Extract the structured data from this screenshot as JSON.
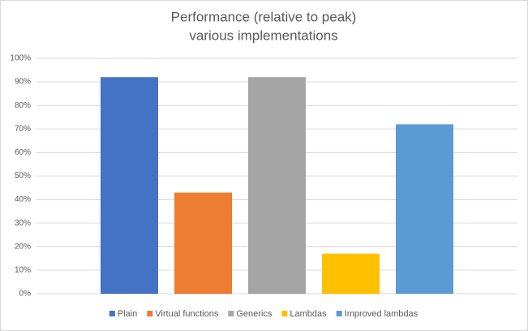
{
  "chart_data": {
    "type": "bar",
    "title": "Performance (relative to peak)",
    "subtitle": "various implementations",
    "categories": [
      null
    ],
    "series": [
      {
        "name": "Plain",
        "color": "#4472c4",
        "values": [
          92
        ]
      },
      {
        "name": "Virtual functions",
        "color": "#ed7d31",
        "values": [
          43
        ]
      },
      {
        "name": "Generics",
        "color": "#a5a5a5",
        "values": [
          92
        ]
      },
      {
        "name": "Lambdas",
        "color": "#ffc000",
        "values": [
          17
        ]
      },
      {
        "name": "Improved lambdas",
        "color": "#5b9bd5",
        "values": [
          72
        ]
      }
    ],
    "ylim": [
      0,
      100
    ],
    "yticks": [
      {
        "value": 0,
        "label": "0%"
      },
      {
        "value": 10,
        "label": "10%"
      },
      {
        "value": 20,
        "label": "20%"
      },
      {
        "value": 30,
        "label": "30%"
      },
      {
        "value": 40,
        "label": "40%"
      },
      {
        "value": 50,
        "label": "50%"
      },
      {
        "value": 60,
        "label": "60%"
      },
      {
        "value": 70,
        "label": "70%"
      },
      {
        "value": 80,
        "label": "80%"
      },
      {
        "value": 90,
        "label": "90%"
      },
      {
        "value": 100,
        "label": "100%"
      }
    ],
    "grid": true,
    "legend": "bottom"
  }
}
